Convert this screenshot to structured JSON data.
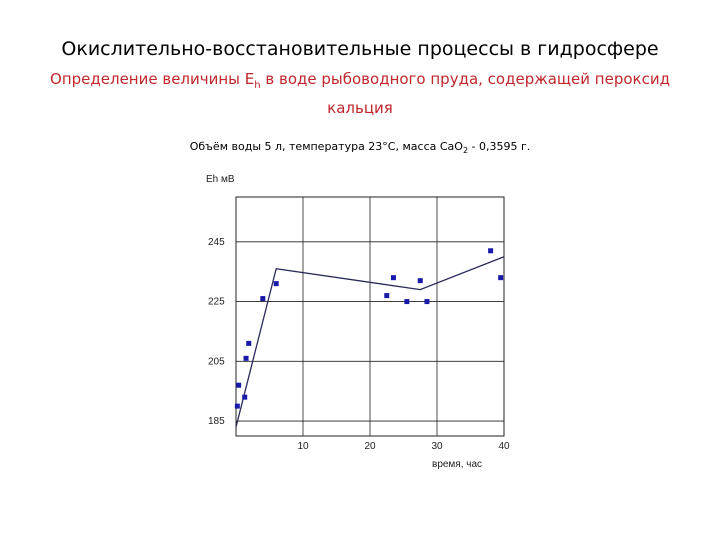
{
  "header": {
    "title": "Окислительно-восстановительные процессы в гидросфере",
    "subtitle_before": "Определение величины E",
    "subtitle_sub": "h",
    "subtitle_after": " в воде рыбоводного пруда, содержащей пероксид кальция",
    "conditions_before": "Объём воды 5 л, температура 23°С, масса СаО",
    "conditions_sub": "2",
    "conditions_after": " - 0,3595 г."
  },
  "colors": {
    "points": "#1a1aa8",
    "line": "#2a2a5a",
    "grid": "#222222",
    "subtitle": "#c0272d"
  },
  "chart_data": {
    "type": "scatter",
    "ylabel": "Eh мВ",
    "xlabel": "время, час",
    "xlim": [
      0,
      40
    ],
    "ylim": [
      180,
      260
    ],
    "x_ticks": [
      10,
      20,
      30,
      40
    ],
    "y_ticks": [
      185,
      205,
      225,
      245
    ],
    "grid": true,
    "series": [
      {
        "kind": "points",
        "x": [
          0.2,
          0.4,
          1.3,
          1.5,
          1.9,
          4.0,
          6.0,
          22.5,
          23.5,
          25.5,
          27.5,
          28.5,
          38.0,
          39.5
        ],
        "y": [
          190,
          197,
          193,
          206,
          211,
          226,
          231,
          227,
          233,
          225,
          232,
          225,
          242,
          233
        ]
      },
      {
        "kind": "line",
        "x": [
          0.0,
          6.0,
          27.5,
          40.0
        ],
        "y": [
          183,
          236,
          229,
          240
        ]
      }
    ]
  }
}
